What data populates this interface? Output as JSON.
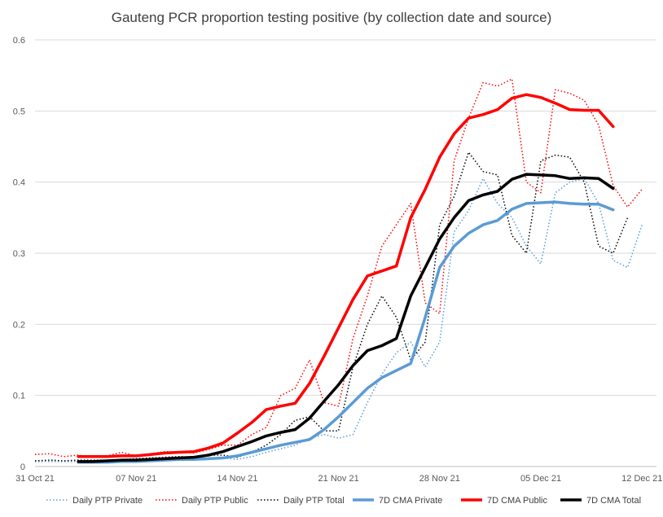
{
  "chart_data": {
    "type": "line",
    "title": "Gauteng PCR proportion testing positive (by collection date and source)",
    "xlabel": "",
    "ylabel": "",
    "ylim": [
      0,
      0.6
    ],
    "yticks": [
      "0",
      "0.1",
      "0.2",
      "0.3",
      "0.4",
      "0.5",
      "0.6"
    ],
    "xticks": [
      {
        "day": 0,
        "label": "31 Oct 21"
      },
      {
        "day": 7,
        "label": "07 Nov 21"
      },
      {
        "day": 14,
        "label": "14 Nov 21"
      },
      {
        "day": 21,
        "label": "21 Nov 21"
      },
      {
        "day": 28,
        "label": "28 Nov 21"
      },
      {
        "day": 35,
        "label": "05 Dec 21"
      },
      {
        "day": 42,
        "label": "12 Dec 21"
      }
    ],
    "x_start_label": "31 Oct 21",
    "grid": "horizontal",
    "legend_position": "bottom",
    "series": [
      {
        "name": "Daily PTP Private",
        "color": "#5b9bd5",
        "style": "dotted",
        "start": 0,
        "values": [
          0.007,
          0.007,
          0.007,
          0.007,
          0.008,
          0.008,
          0.008,
          0.01,
          0.01,
          0.011,
          0.012,
          0.013,
          0.011,
          0.012,
          0.01,
          0.014,
          0.02,
          0.025,
          0.03,
          0.04,
          0.045,
          0.04,
          0.045,
          0.09,
          0.13,
          0.16,
          0.175,
          0.14,
          0.175,
          0.33,
          0.36,
          0.405,
          0.37,
          0.35,
          0.31,
          0.285,
          0.385,
          0.4,
          0.405,
          0.37,
          0.29,
          0.28,
          0.34
        ]
      },
      {
        "name": "Daily PTP Public",
        "color": "#ff0000",
        "style": "dotted",
        "start": 0,
        "values": [
          0.017,
          0.018,
          0.014,
          0.016,
          0.013,
          0.015,
          0.02,
          0.015,
          0.018,
          0.021,
          0.02,
          0.019,
          0.024,
          0.03,
          0.03,
          0.045,
          0.055,
          0.1,
          0.11,
          0.15,
          0.09,
          0.085,
          0.18,
          0.24,
          0.31,
          0.34,
          0.37,
          0.23,
          0.215,
          0.43,
          0.49,
          0.54,
          0.535,
          0.545,
          0.4,
          0.385,
          0.53,
          0.525,
          0.515,
          0.48,
          0.395,
          0.365,
          0.39
        ]
      },
      {
        "name": "Daily PTP Total",
        "color": "#000000",
        "style": "dotted",
        "start": 0,
        "values": [
          0.008,
          0.009,
          0.008,
          0.009,
          0.009,
          0.009,
          0.01,
          0.011,
          0.012,
          0.013,
          0.014,
          0.013,
          0.016,
          0.016,
          0.013,
          0.02,
          0.03,
          0.045,
          0.065,
          0.07,
          0.05,
          0.05,
          0.14,
          0.2,
          0.24,
          0.21,
          0.15,
          0.175,
          0.34,
          0.38,
          0.442,
          0.415,
          0.41,
          0.325,
          0.3,
          0.43,
          0.438,
          0.435,
          0.4,
          0.31,
          0.3,
          0.35
        ]
      },
      {
        "name": "7D CMA Private",
        "color": "#5b9bd5",
        "style": "solid",
        "start": 3,
        "values": [
          0.006,
          0.006,
          0.006,
          0.007,
          0.007,
          0.008,
          0.009,
          0.01,
          0.01,
          0.011,
          0.012,
          0.015,
          0.02,
          0.025,
          0.03,
          0.034,
          0.038,
          0.052,
          0.07,
          0.09,
          0.11,
          0.125,
          0.135,
          0.145,
          0.21,
          0.28,
          0.31,
          0.328,
          0.34,
          0.346,
          0.362,
          0.37,
          0.371,
          0.372,
          0.37,
          0.369,
          0.369,
          0.361
        ]
      },
      {
        "name": "7D CMA Public",
        "color": "#ff0000",
        "style": "solid",
        "start": 3,
        "values": [
          0.014,
          0.014,
          0.014,
          0.015,
          0.015,
          0.017,
          0.019,
          0.02,
          0.021,
          0.026,
          0.033,
          0.047,
          0.062,
          0.08,
          0.085,
          0.089,
          0.117,
          0.155,
          0.195,
          0.235,
          0.268,
          0.275,
          0.282,
          0.35,
          0.39,
          0.435,
          0.468,
          0.49,
          0.495,
          0.502,
          0.518,
          0.523,
          0.519,
          0.511,
          0.502,
          0.501,
          0.501,
          0.478
        ]
      },
      {
        "name": "7D CMA Total",
        "color": "#000000",
        "style": "solid",
        "start": 3,
        "values": [
          0.007,
          0.007,
          0.008,
          0.009,
          0.009,
          0.01,
          0.011,
          0.012,
          0.013,
          0.016,
          0.021,
          0.028,
          0.035,
          0.043,
          0.048,
          0.052,
          0.068,
          0.092,
          0.115,
          0.142,
          0.163,
          0.17,
          0.18,
          0.24,
          0.28,
          0.32,
          0.35,
          0.374,
          0.382,
          0.387,
          0.404,
          0.411,
          0.41,
          0.409,
          0.405,
          0.406,
          0.405,
          0.391
        ]
      }
    ]
  }
}
